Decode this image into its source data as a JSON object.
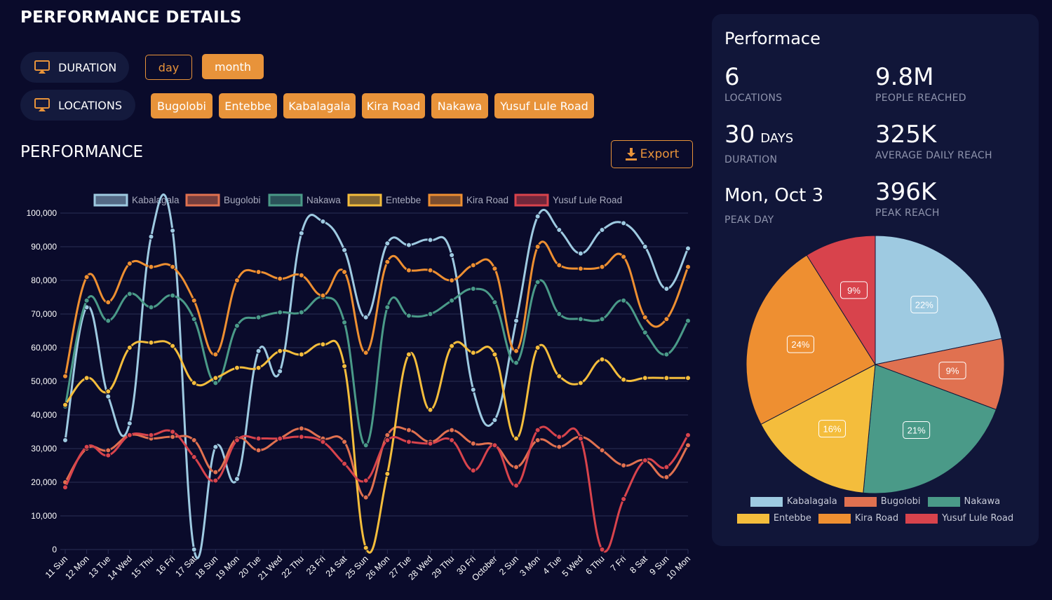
{
  "header": {
    "title": "PERFORMANCE DETAILS"
  },
  "filters": {
    "duration_label": "DURATION",
    "locations_label": "LOCATIONS",
    "duration_options": [
      "day",
      "month"
    ],
    "duration_selected": "month",
    "locations": [
      "Bugolobi",
      "Entebbe",
      "Kabalagala",
      "Kira Road",
      "Nakawa",
      "Yusuf Lule Road"
    ]
  },
  "section": {
    "title": "PERFORMANCE",
    "export_label": "Export"
  },
  "colors": {
    "Kabalagala": "#9ecae1",
    "Bugolobi": "#e07150",
    "Nakawa": "#4a9a88",
    "Entebbe": "#f4bd3c",
    "Kira Road": "#ee8f31",
    "Yusuf Lule Road": "#d8434c",
    "accent": "#e8933a"
  },
  "chart_data": [
    {
      "type": "line",
      "title": "",
      "xlabel": "",
      "ylabel": "",
      "ylim": [
        0,
        100000
      ],
      "yticks": [
        "0",
        "10,000",
        "20,000",
        "30,000",
        "40,000",
        "50,000",
        "60,000",
        "70,000",
        "80,000",
        "90,000",
        "100,000"
      ],
      "legend": "top",
      "grid": true,
      "categories": [
        "11 Sun",
        "12 Mon",
        "13 Tue",
        "14 Wed",
        "15 Thu",
        "16 Fri",
        "17 Sat",
        "18 Sun",
        "19 Mon",
        "20 Tue",
        "21 Wed",
        "22 Thu",
        "23 Fri",
        "24 Sat",
        "25 Sun",
        "26 Mon",
        "27 Tue",
        "28 Wed",
        "29 Thu",
        "30 Fri",
        "October",
        "2 Sun",
        "3 Mon",
        "4 Tue",
        "5 Wed",
        "6 Thu",
        "7 Fri",
        "8 Sat",
        "9 Sun",
        "10 Mon"
      ],
      "series": [
        {
          "name": "Kabalagala",
          "values": [
            32500,
            72000,
            45500,
            37500,
            93000,
            94800,
            0,
            30500,
            21000,
            59000,
            53000,
            94000,
            97500,
            89000,
            69000,
            91000,
            90500,
            92000,
            87500,
            47500,
            38500,
            68000,
            99000,
            95000,
            88000,
            95000,
            97000,
            90000,
            77500,
            89500
          ]
        },
        {
          "name": "Bugolobi",
          "values": [
            20000,
            30000,
            29500,
            34000,
            33000,
            33500,
            32500,
            23000,
            33000,
            29500,
            33000,
            36000,
            33000,
            32000,
            15500,
            34000,
            35500,
            32000,
            35500,
            31500,
            31000,
            24500,
            32500,
            30500,
            33500,
            29500,
            25000,
            26500,
            21500,
            31000
          ]
        },
        {
          "name": "Nakawa",
          "values": [
            42500,
            74000,
            68000,
            76000,
            72000,
            75500,
            68500,
            49500,
            66500,
            69000,
            70500,
            70500,
            75000,
            67500,
            31000,
            72000,
            69500,
            70000,
            74000,
            77500,
            73500,
            55500,
            79500,
            70000,
            68500,
            68500,
            74000,
            64500,
            58000,
            68000
          ]
        },
        {
          "name": "Entebbe",
          "values": [
            43000,
            51000,
            47000,
            60000,
            61500,
            60500,
            49500,
            51000,
            54000,
            54000,
            59000,
            58000,
            61000,
            54500,
            500,
            22500,
            58000,
            41500,
            60500,
            58500,
            58000,
            33000,
            60000,
            51500,
            49500,
            56500,
            50500,
            51000,
            51000,
            51000
          ]
        },
        {
          "name": "Kira Road",
          "values": [
            51500,
            81000,
            73500,
            85000,
            84000,
            84000,
            74000,
            58000,
            80000,
            82500,
            80500,
            81500,
            75500,
            82500,
            58500,
            85500,
            83000,
            83000,
            80000,
            84500,
            83500,
            59000,
            90000,
            84500,
            83500,
            84000,
            87000,
            69000,
            68500,
            84000
          ]
        },
        {
          "name": "Yusuf Lule Road",
          "values": [
            18500,
            30500,
            28000,
            34000,
            34000,
            35000,
            27500,
            20500,
            32500,
            33000,
            33000,
            33500,
            32000,
            25500,
            20500,
            32500,
            32000,
            31500,
            32500,
            23500,
            31000,
            19000,
            35500,
            33500,
            33000,
            0,
            15000,
            26500,
            24500,
            34000
          ]
        }
      ]
    },
    {
      "type": "pie",
      "title": "",
      "legend": "bottom",
      "categories": [
        "Kabalagala",
        "Bugolobi",
        "Nakawa",
        "Entebbe",
        "Kira Road",
        "Yusuf Lule Road"
      ],
      "values": [
        22,
        9,
        21,
        16,
        24,
        9
      ],
      "labels": [
        "22%",
        "9%",
        "21%",
        "16%",
        "24%",
        "9%"
      ]
    }
  ],
  "panel": {
    "title": "Performace",
    "stats": [
      {
        "value": "6",
        "unit": "",
        "label": "LOCATIONS"
      },
      {
        "value": "9.8M",
        "unit": "",
        "label": "PEOPLE REACHED"
      },
      {
        "value": "30",
        "unit": "DAYS",
        "label": "DURATION"
      },
      {
        "value": "325K",
        "unit": "",
        "label": "AVERAGE DAILY REACH"
      },
      {
        "value": "Mon, Oct 3",
        "unit": "",
        "label": "PEAK DAY"
      },
      {
        "value": "396K",
        "unit": "",
        "label": "PEAK REACH"
      }
    ]
  }
}
